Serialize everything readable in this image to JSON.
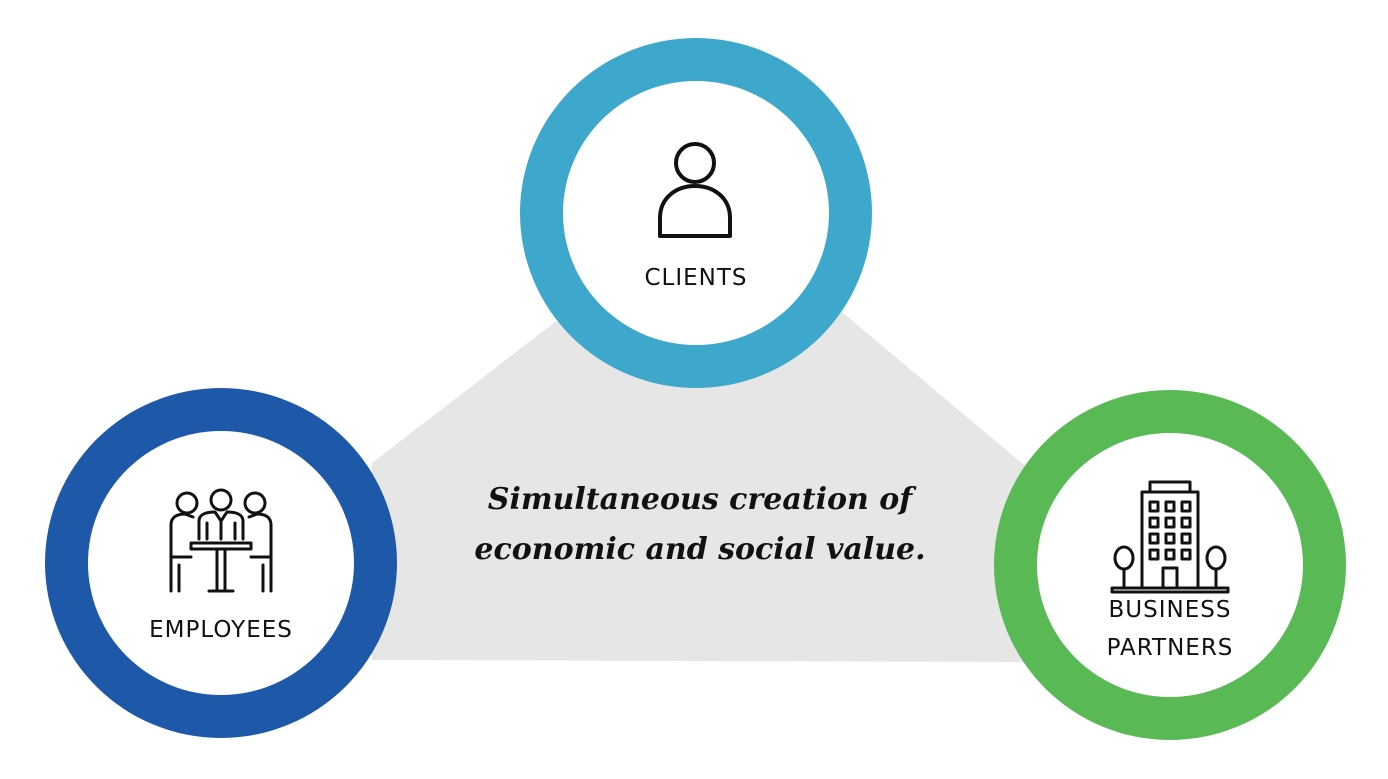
{
  "diagram": {
    "caption_lines": [
      "Simultaneous creation of",
      "economic and social value."
    ],
    "nodes": {
      "clients": {
        "label": "CLIENTS",
        "icon": "person-icon",
        "color": "#3da8cb"
      },
      "employees": {
        "label": "EMPLOYEES",
        "icon": "team-meeting-icon",
        "color": "#1e58a8"
      },
      "partners": {
        "label_lines": [
          "BUSINESS",
          "PARTNERS"
        ],
        "icon": "office-building-icon",
        "color": "#59b955"
      }
    },
    "background_color": "#e6e6e6"
  }
}
